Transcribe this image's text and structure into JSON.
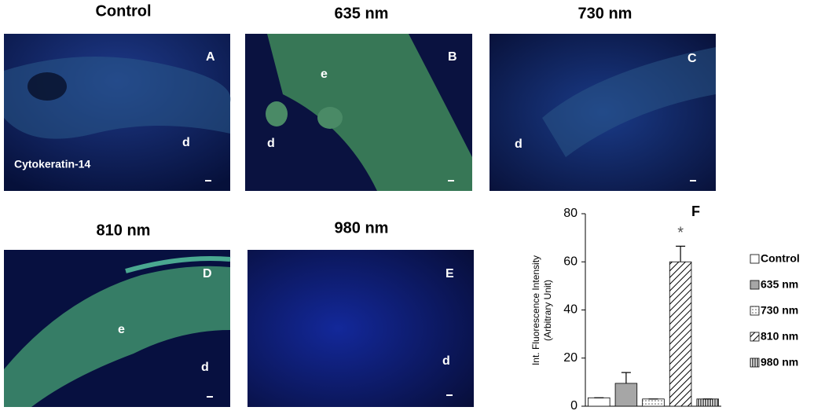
{
  "panels": [
    {
      "title": "Control",
      "letter": "A",
      "labels": [
        "d",
        "Cytokeratin-14"
      ]
    },
    {
      "title": "635 nm",
      "letter": "B",
      "labels": [
        "e",
        "d"
      ]
    },
    {
      "title": "730 nm",
      "letter": "C",
      "labels": [
        "d"
      ]
    },
    {
      "title": "810 nm",
      "letter": "D",
      "labels": [
        "e",
        "d"
      ]
    },
    {
      "title": "980 nm",
      "letter": "E",
      "labels": [
        "d"
      ]
    }
  ],
  "chart_data": {
    "type": "bar",
    "title": "F",
    "y_label": [
      "Int. Fluorescence Intensity",
      "(Arbitrary Unit)"
    ],
    "categories": [
      "Control",
      "635 nm",
      "730 nm",
      "810 nm",
      "980 nm"
    ],
    "values": [
      3.5,
      9.5,
      3,
      60,
      3
    ],
    "errors": [
      0,
      4.5,
      0,
      6.5,
      0
    ],
    "fills": [
      "#ffffff",
      "#a6a6a6",
      "dots",
      "diagonal",
      "vertical"
    ],
    "annotations": [
      {
        "category": 3,
        "text": "*"
      }
    ],
    "ylim": [
      0,
      80
    ],
    "yticks": [
      0,
      20,
      40,
      60,
      80
    ],
    "legend": "right"
  }
}
